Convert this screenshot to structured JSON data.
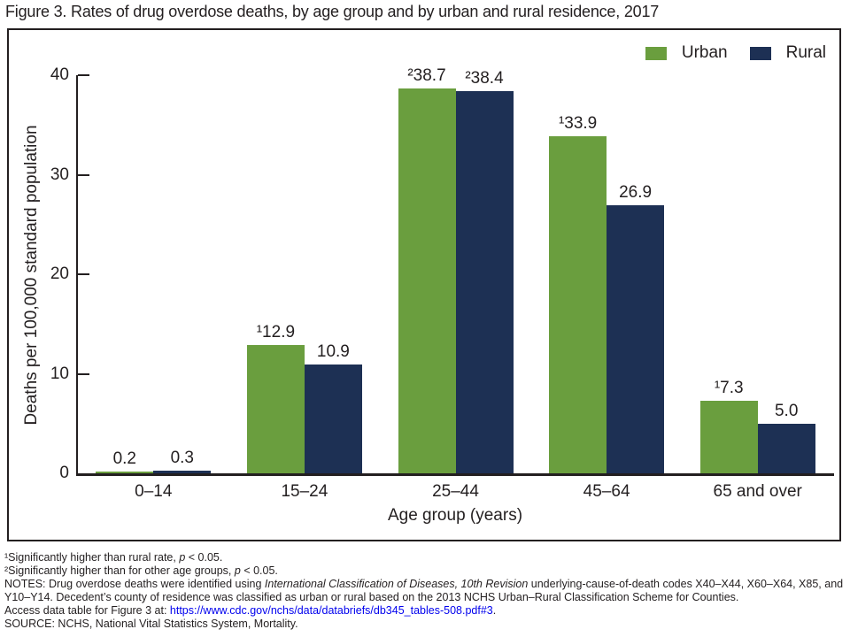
{
  "figure_title": "Figure 3. Rates of drug overdose deaths, by age group and by urban and rural residence, 2017",
  "chart_data": {
    "type": "bar",
    "title": "Figure 3. Rates of drug overdose deaths, by age group and by urban and rural residence, 2017",
    "categories": [
      "0–14",
      "15–24",
      "25–44",
      "45–64",
      "65 and over"
    ],
    "series": [
      {
        "name": "Urban",
        "color": "#6a9e3e",
        "values": [
          0.2,
          12.9,
          38.7,
          33.9,
          7.3
        ],
        "bar_labels": [
          "0.2",
          "¹12.9",
          "²38.7",
          "¹33.9",
          "¹7.3"
        ]
      },
      {
        "name": "Rural",
        "color": "#1d3054",
        "values": [
          0.3,
          10.9,
          38.4,
          26.9,
          5.0
        ],
        "bar_labels": [
          "0.3",
          "10.9",
          "²38.4",
          "26.9",
          "5.0"
        ]
      }
    ],
    "xlabel": "Age group (years)",
    "ylabel": "Deaths per 100,000 standard population",
    "ylim": [
      0,
      40
    ],
    "yticks": [
      40,
      30,
      20,
      10,
      0
    ],
    "legend_position": "top-right",
    "grid": false
  },
  "colors": {
    "urban": "#6a9e3e",
    "rural": "#1d3054",
    "axis": "#231f20",
    "link": "#0000ee"
  },
  "footnotes": [
    {
      "segments": [
        {
          "t": "¹Significantly higher than rural rate, "
        },
        {
          "t": "p",
          "i": true
        },
        {
          "t": " < 0.05."
        }
      ]
    },
    {
      "segments": [
        {
          "t": "²Significantly higher than for other age groups, "
        },
        {
          "t": "p",
          "i": true
        },
        {
          "t": " < 0.05."
        }
      ]
    },
    {
      "segments": [
        {
          "t": "NOTES: Drug overdose deaths were identified using "
        },
        {
          "t": "International Classification of Diseases, 10th Revision",
          "i": true
        },
        {
          "t": " underlying-cause-of-death codes X40–X44, X60–X64, X85, and Y10–Y14. Decedent’s county of residence was classified as urban or rural based on the 2013 NCHS Urban–Rural Classification Scheme for Counties."
        }
      ]
    },
    {
      "segments": [
        {
          "t": "Access data table for Figure 3 at: "
        },
        {
          "t": "https://www.cdc.gov/nchs/data/databriefs/db345_tables-508.pdf#3",
          "link": true
        },
        {
          "t": "."
        }
      ]
    },
    {
      "segments": [
        {
          "t": "SOURCE: NCHS, National Vital Statistics System, Mortality."
        }
      ]
    }
  ]
}
